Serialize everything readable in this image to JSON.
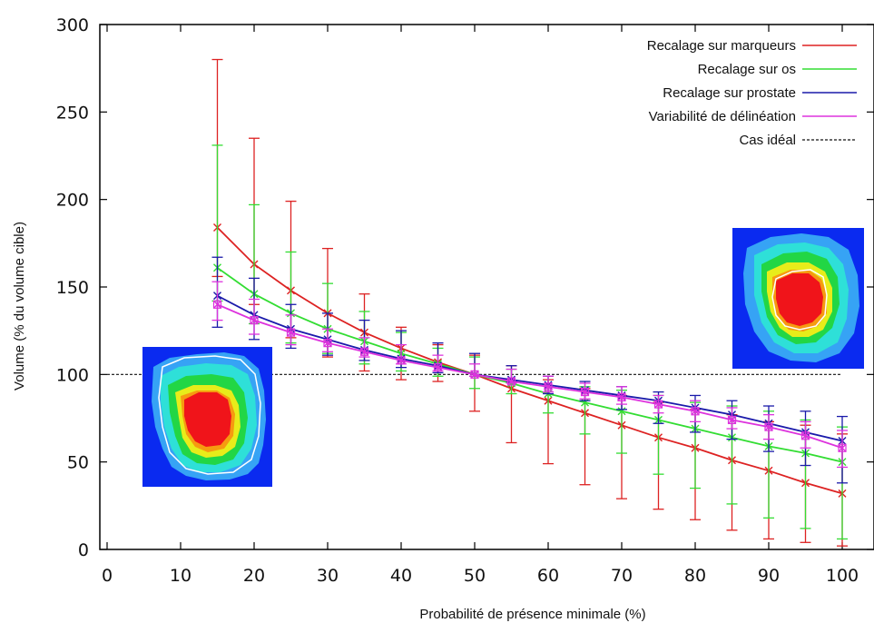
{
  "chart_data": {
    "type": "line",
    "title": "",
    "xlabel": "Probabilité de présence minimale (%)",
    "ylabel": "Volume (% du volume cible)",
    "xlim": [
      0,
      105
    ],
    "ylim": [
      0,
      300
    ],
    "x_ticks": [
      0,
      10,
      20,
      30,
      40,
      50,
      60,
      70,
      80,
      90,
      100
    ],
    "y_ticks": [
      0,
      50,
      100,
      150,
      200,
      250,
      300
    ],
    "x": [
      15,
      20,
      25,
      30,
      35,
      40,
      45,
      50,
      55,
      60,
      65,
      70,
      75,
      80,
      85,
      90,
      95,
      100
    ],
    "grid": false,
    "legend_position": "top-right",
    "series": [
      {
        "name": "Recalage  sur marqueurs",
        "color": "#dd2222",
        "values": [
          184,
          163,
          148,
          135,
          124,
          115,
          107,
          100,
          92,
          85,
          78,
          71,
          64,
          58,
          51,
          45,
          38,
          32
        ],
        "upper": [
          280,
          235,
          199,
          172,
          146,
          127,
          117,
          111,
          105,
          97,
          92,
          88,
          84,
          80,
          77,
          73,
          71,
          66
        ],
        "lower": [
          156,
          140,
          121,
          110,
          102,
          97,
          96,
          79,
          61,
          49,
          37,
          29,
          23,
          17,
          11,
          6,
          4,
          2
        ]
      },
      {
        "name": "Recalage sur os",
        "color": "#33dd33",
        "values": [
          161,
          146,
          135,
          126,
          119,
          112,
          106,
          100,
          95,
          89,
          84,
          79,
          74,
          69,
          64,
          59,
          55,
          50
        ],
        "upper": [
          231,
          197,
          170,
          152,
          136,
          124,
          115,
          110,
          103,
          99,
          93,
          91,
          88,
          84,
          82,
          79,
          74,
          70
        ],
        "lower": [
          142,
          129,
          118,
          112,
          106,
          102,
          99,
          92,
          89,
          78,
          66,
          55,
          43,
          35,
          26,
          18,
          12,
          6
        ]
      },
      {
        "name": "Recalage sur prostate",
        "color": "#1a1aaa",
        "values": [
          145,
          134,
          126,
          120,
          114,
          109,
          105,
          100,
          97,
          94,
          91,
          88,
          85,
          81,
          77,
          72,
          67,
          62
        ],
        "upper": [
          167,
          155,
          140,
          135,
          131,
          125,
          118,
          112,
          105,
          99,
          96,
          93,
          90,
          88,
          85,
          82,
          79,
          76
        ],
        "lower": [
          127,
          120,
          115,
          111,
          108,
          104,
          101,
          99,
          96,
          89,
          85,
          80,
          72,
          67,
          63,
          56,
          48,
          38
        ]
      },
      {
        "name": "Variabilité de délinéation",
        "color": "#dd33dd",
        "values": [
          140,
          131,
          124,
          118,
          113,
          108,
          104,
          100,
          96,
          93,
          90,
          87,
          83,
          79,
          74,
          70,
          65,
          58
        ],
        "upper": [
          153,
          143,
          134,
          126,
          121,
          117,
          111,
          106,
          103,
          99,
          95,
          93,
          88,
          85,
          81,
          77,
          73,
          68
        ],
        "lower": [
          131,
          123,
          117,
          113,
          110,
          106,
          102,
          99,
          95,
          90,
          86,
          83,
          78,
          73,
          69,
          63,
          58,
          47
        ]
      },
      {
        "name": "Cas idéal",
        "color": "#111111",
        "style": "dashed",
        "x": [
          0,
          100
        ],
        "values": [
          100,
          100
        ]
      }
    ],
    "insets": [
      {
        "name": "dose-map-left",
        "colormap": [
          "blue",
          "cyan",
          "green",
          "yellow",
          "orange",
          "red"
        ]
      },
      {
        "name": "dose-map-right",
        "colormap": [
          "blue",
          "cyan",
          "green",
          "yellow",
          "orange",
          "red"
        ]
      }
    ]
  }
}
